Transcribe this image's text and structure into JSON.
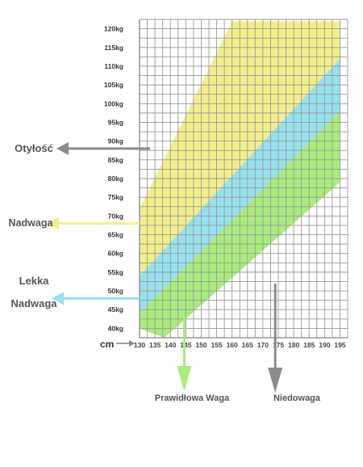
{
  "chart_data": {
    "type": "area",
    "x_unit": "cm",
    "x_ticks": [
      130,
      135,
      140,
      145,
      150,
      155,
      160,
      165,
      170,
      175,
      180,
      185,
      190,
      195
    ],
    "y_ticks": [
      "40kg",
      "45kg",
      "50kg",
      "55kg",
      "60kg",
      "65kg",
      "70kg",
      "75kg",
      "80kg",
      "85kg",
      "90kg",
      "95kg",
      "100kg",
      "105kg",
      "110kg",
      "115kg",
      "120kg"
    ],
    "xlim": [
      130,
      197.5
    ],
    "ylim": [
      37.5,
      122.5
    ],
    "grid": true,
    "regions": [
      {
        "name": "Otyłość",
        "color": "#8c8c8c",
        "label_lines": [
          "Otyłość"
        ],
        "arrow": "left",
        "arrow_at": {
          "x": 135,
          "y": 88
        }
      },
      {
        "name": "Nadwaga",
        "color": "#f2ef8a",
        "label_lines": [
          "Nadwaga"
        ],
        "arrow": "left",
        "arrow_at": {
          "x": 130,
          "y": 68
        }
      },
      {
        "name": "Lekka Nadwaga",
        "color": "#96e1ee",
        "label_lines": [
          "Lekka",
          "Nadwaga"
        ],
        "arrow": "left",
        "arrow_at": {
          "x": 130,
          "y": 48
        }
      },
      {
        "name": "Prawidłowa Waga",
        "color": "#a8ec7c",
        "label_lines": [
          "Prawidłowa Waga"
        ],
        "arrow": "down",
        "arrow_at": {
          "x": 144.5,
          "y": 40
        }
      },
      {
        "name": "Niedowaga",
        "color": "#8c8c8c",
        "label_lines": [
          "Niedowaga"
        ],
        "arrow": "down",
        "arrow_at": {
          "x": 174,
          "y": 51
        }
      }
    ],
    "bands": [
      {
        "color": "#f2ef8a",
        "upper": [
          [
            130,
            72
          ],
          [
            160,
            122
          ],
          [
            195,
            122
          ]
        ],
        "lower": [
          [
            130,
            54
          ],
          [
            195,
            112
          ]
        ]
      },
      {
        "color": "#96e1ee",
        "upper": [
          [
            130,
            54
          ],
          [
            195,
            112
          ]
        ],
        "lower": [
          [
            130,
            44
          ],
          [
            195,
            98
          ]
        ]
      },
      {
        "color": "#a8ec7c",
        "upper": [
          [
            130,
            44
          ],
          [
            195,
            98
          ]
        ],
        "lower": [
          [
            130,
            40
          ],
          [
            138,
            37.5
          ],
          [
            195,
            79
          ]
        ]
      }
    ]
  }
}
